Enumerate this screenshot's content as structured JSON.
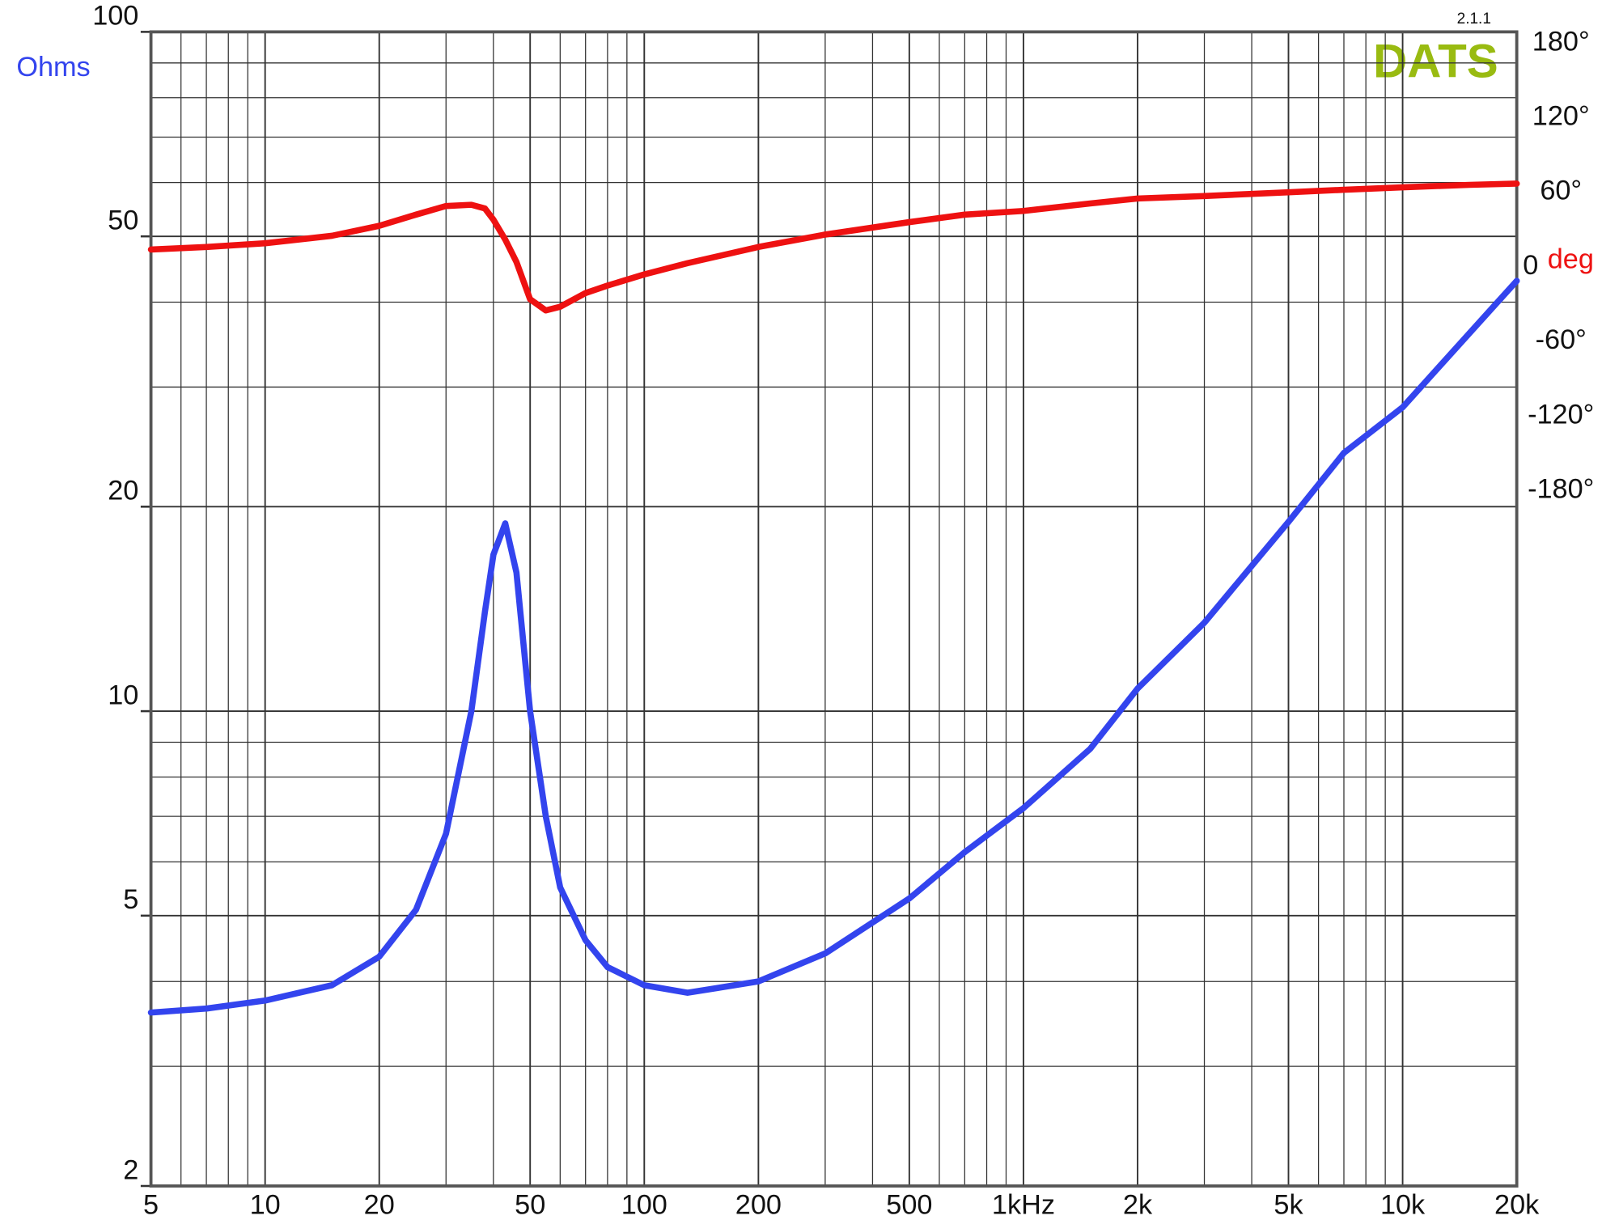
{
  "chart_data": {
    "type": "line",
    "y_label": "Ohms",
    "y2_label": "deg",
    "logo": "DATS",
    "version": "2.1.1",
    "x": [
      5,
      7,
      10,
      15,
      20,
      25,
      30,
      35,
      38,
      40,
      43,
      46,
      50,
      55,
      60,
      70,
      80,
      100,
      130,
      200,
      300,
      500,
      700,
      1000,
      1500,
      2000,
      3000,
      5000,
      7000,
      10000,
      15000,
      20000
    ],
    "series": [
      {
        "name": "Ohms",
        "color": "#3344ee",
        "values": [
          3.6,
          3.65,
          3.75,
          3.95,
          4.35,
          5.1,
          6.6,
          10,
          14,
          17,
          18.9,
          16,
          10,
          7,
          5.5,
          4.6,
          4.2,
          3.95,
          3.85,
          4.0,
          4.4,
          5.3,
          6.2,
          7.2,
          8.8,
          10.8,
          13.5,
          19,
          24,
          28,
          36,
          43
        ]
      },
      {
        "name": "deg",
        "color": "#ee1111",
        "axis": "y2",
        "values": [
          14,
          16,
          19,
          25,
          33,
          42,
          49,
          50,
          47,
          38,
          22,
          4,
          -26,
          -35,
          -32,
          -21,
          -15,
          -6,
          3,
          16,
          26,
          36,
          42,
          45,
          51,
          55,
          57,
          60,
          62,
          64,
          66,
          67
        ]
      }
    ],
    "xlog": true,
    "ylog": true,
    "xlim": [
      5,
      20000
    ],
    "ylim": [
      2,
      100
    ],
    "y2lim": [
      -739,
      189
    ],
    "xticks": [
      5,
      10,
      20,
      50,
      100,
      200,
      500,
      {
        "value": 1000,
        "label": "1kHz"
      },
      {
        "value": 2000,
        "label": "2k"
      },
      {
        "value": 5000,
        "label": "5k"
      },
      {
        "value": 10000,
        "label": "10k"
      },
      {
        "value": 20000,
        "label": "20k"
      }
    ],
    "xminorticks": [
      6,
      7,
      8,
      9,
      30,
      40,
      60,
      70,
      80,
      90,
      300,
      400,
      600,
      700,
      800,
      900,
      3000,
      4000,
      6000,
      7000,
      8000,
      9000
    ],
    "yticks": [
      2,
      5,
      10,
      20,
      50,
      100
    ],
    "yminorticks": [
      3,
      4,
      6,
      7,
      8,
      9,
      30,
      40,
      60,
      70,
      80,
      90
    ],
    "y2ticks": [
      {
        "value": 180,
        "label": "180°"
      },
      {
        "value": 120,
        "label": "120°"
      },
      {
        "value": 60,
        "label": "60°"
      },
      0,
      {
        "value": -60,
        "label": "-60°"
      },
      {
        "value": -120,
        "label": "-120°"
      },
      {
        "value": -180,
        "label": "-180°"
      }
    ],
    "grid": true
  }
}
